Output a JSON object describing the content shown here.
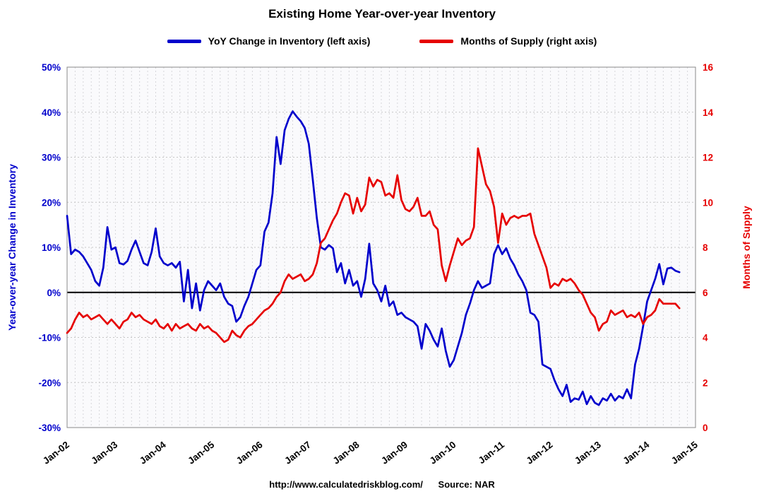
{
  "title": "Existing Home Year-over-year Inventory",
  "legend": [
    {
      "label": "YoY Change in Inventory (left axis)",
      "color": "#0000CC"
    },
    {
      "label": "Months of Supply (right axis)",
      "color": "#E60000"
    }
  ],
  "footer": {
    "url": "http://www.calculatedriskblog.com/",
    "source": "Source: NAR"
  },
  "chart_data": {
    "type": "line",
    "title": "Existing Home Year-over-year Inventory",
    "start_month": "2002-01",
    "months_shown": 156,
    "x_tick_labels": [
      "Jan-02",
      "Jan-03",
      "Jan-04",
      "Jan-05",
      "Jan-06",
      "Jan-07",
      "Jan-08",
      "Jan-09",
      "Jan-10",
      "Jan-11",
      "Jan-12",
      "Jan-13",
      "Jan-14",
      "Jan-15"
    ],
    "grid": "dashed gray, vertical every 2 months, horizontal every 10% / 2 units",
    "legend_position": "top-center",
    "left_axis": {
      "label": "Year-over-year Change in Inventory",
      "color": "#0000CC",
      "min": -30,
      "max": 50,
      "tick_values": [
        50,
        40,
        30,
        20,
        10,
        0,
        -10,
        -20,
        -30
      ],
      "tick_labels": [
        "50%",
        "40%",
        "30%",
        "20%",
        "10%",
        "0%",
        "-10%",
        "-20%",
        "-30%"
      ]
    },
    "right_axis": {
      "label": "Months of Supply",
      "color": "#E60000",
      "min": 0,
      "max": 16,
      "tick_values": [
        16,
        14,
        12,
        10,
        8,
        6,
        4,
        2,
        0
      ],
      "tick_labels": [
        "16",
        "14",
        "12",
        "10",
        "8",
        "6",
        "4",
        "2",
        "0"
      ]
    },
    "zero_line": {
      "value": 0,
      "axis": "left",
      "color": "#000000"
    },
    "series": [
      {
        "name": "YoY Change in Inventory",
        "axis": "left",
        "unit": "%",
        "color": "#0000CC",
        "values": [
          17.0,
          8.5,
          9.5,
          9.0,
          8.0,
          6.5,
          5.0,
          2.5,
          1.5,
          5.5,
          14.5,
          9.5,
          10.0,
          6.5,
          6.2,
          7.0,
          9.5,
          11.5,
          9.0,
          6.5,
          6.0,
          9.0,
          14.2,
          8.0,
          6.5,
          6.0,
          6.5,
          5.5,
          6.8,
          -2.0,
          5.0,
          -3.5,
          2.0,
          -4.0,
          0.5,
          2.5,
          1.5,
          0.5,
          2.0,
          -1.0,
          -2.5,
          -3.0,
          -6.5,
          -5.5,
          -3.0,
          -1.0,
          2.0,
          5.0,
          6.0,
          13.5,
          15.5,
          22.0,
          34.5,
          28.5,
          36.0,
          38.5,
          40.2,
          39.0,
          38.0,
          36.5,
          33.0,
          25.0,
          16.5,
          10.0,
          9.5,
          10.5,
          9.8,
          4.5,
          6.5,
          2.0,
          5.0,
          1.5,
          2.5,
          -1.0,
          3.0,
          10.8,
          2.0,
          0.5,
          -2.0,
          1.5,
          -3.0,
          -2.0,
          -5.0,
          -4.5,
          -5.5,
          -6.0,
          -6.5,
          -7.5,
          -12.5,
          -7.0,
          -8.5,
          -10.5,
          -12.0,
          -8.0,
          -13.0,
          -16.5,
          -15.0,
          -12.0,
          -9.0,
          -5.0,
          -2.5,
          0.5,
          2.5,
          1.0,
          1.5,
          2.0,
          8.5,
          10.5,
          8.5,
          9.8,
          7.5,
          6.0,
          4.0,
          2.5,
          0.5,
          -4.5,
          -5.0,
          -6.5,
          -16.0,
          -16.5,
          -17.0,
          -19.5,
          -21.5,
          -23.0,
          -20.5,
          -24.3,
          -23.5,
          -23.8,
          -22.0,
          -24.8,
          -23.0,
          -24.5,
          -25.0,
          -23.5,
          -24.0,
          -22.5,
          -24.0,
          -23.0,
          -23.5,
          -21.5,
          -23.5,
          -16.0,
          -12.5,
          -7.5,
          -2.0,
          0.5,
          3.0,
          6.3,
          1.8,
          5.3,
          5.5,
          4.8,
          4.5
        ]
      },
      {
        "name": "Months of Supply",
        "axis": "right",
        "unit": "months",
        "color": "#E60000",
        "values": [
          4.2,
          4.4,
          4.8,
          5.1,
          4.9,
          5.0,
          4.8,
          4.9,
          5.0,
          4.8,
          4.6,
          4.8,
          4.6,
          4.4,
          4.7,
          4.8,
          5.1,
          4.9,
          5.0,
          4.8,
          4.7,
          4.6,
          4.8,
          4.5,
          4.4,
          4.6,
          4.3,
          4.6,
          4.4,
          4.5,
          4.6,
          4.4,
          4.3,
          4.6,
          4.4,
          4.5,
          4.3,
          4.2,
          4.0,
          3.8,
          3.9,
          4.3,
          4.1,
          4.0,
          4.3,
          4.5,
          4.6,
          4.8,
          5.0,
          5.2,
          5.3,
          5.5,
          5.8,
          6.0,
          6.5,
          6.8,
          6.6,
          6.7,
          6.8,
          6.5,
          6.6,
          6.8,
          7.3,
          8.2,
          8.4,
          8.8,
          9.2,
          9.5,
          10.0,
          10.4,
          10.3,
          9.5,
          10.2,
          9.6,
          9.9,
          11.1,
          10.7,
          11.0,
          10.9,
          10.3,
          10.4,
          10.2,
          11.2,
          10.1,
          9.7,
          9.6,
          9.8,
          10.2,
          9.4,
          9.4,
          9.6,
          9.0,
          8.8,
          7.2,
          6.5,
          7.2,
          7.8,
          8.4,
          8.1,
          8.3,
          8.4,
          8.9,
          12.4,
          11.6,
          10.8,
          10.5,
          9.8,
          8.2,
          9.5,
          9.0,
          9.3,
          9.4,
          9.3,
          9.4,
          9.4,
          9.5,
          8.6,
          8.1,
          7.6,
          7.1,
          6.2,
          6.4,
          6.3,
          6.6,
          6.5,
          6.6,
          6.4,
          6.1,
          5.9,
          5.5,
          5.1,
          4.9,
          4.3,
          4.6,
          4.7,
          5.2,
          5.0,
          5.1,
          5.2,
          4.9,
          5.0,
          4.9,
          5.1,
          4.6,
          4.9,
          5.0,
          5.2,
          5.7,
          5.5,
          5.5,
          5.5,
          5.5,
          5.3
        ]
      }
    ]
  }
}
